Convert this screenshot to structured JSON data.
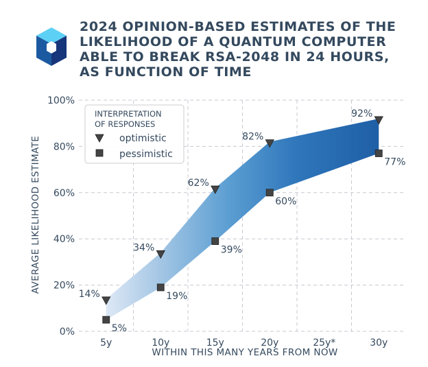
{
  "chart_data": {
    "type": "area",
    "title_lines": [
      "2024 OPINION-BASED ESTIMATES OF THE",
      "LIKELIHOOD OF A QUANTUM COMPUTER",
      "ABLE TO BREAK RSA-2048 IN 24 HOURS,",
      "AS FUNCTION OF TIME"
    ],
    "xlabel": "WITHIN THIS MANY YEARS FROM NOW",
    "ylabel": "AVERAGE LIKELIHOOD ESTIMATE",
    "categories": [
      "5y",
      "10y",
      "15y",
      "20y",
      "25y*",
      "30y"
    ],
    "x": [
      5,
      10,
      15,
      20,
      25,
      30
    ],
    "yticks": [
      "0%",
      "20%",
      "40%",
      "60%",
      "80%",
      "100%"
    ],
    "ylim": [
      0,
      100
    ],
    "grid": true,
    "legend": {
      "title_lines": [
        "INTERPRETATION",
        "OF RESPONSES"
      ],
      "position": "top-left"
    },
    "series": [
      {
        "name": "optimistic",
        "marker": "triangle-down",
        "x": [
          5,
          10,
          15,
          20,
          30
        ],
        "values": [
          14,
          34,
          62,
          82,
          92
        ],
        "labels": [
          "14%",
          "34%",
          "62%",
          "82%",
          "92%"
        ]
      },
      {
        "name": "pessimistic",
        "marker": "square",
        "x": [
          5,
          10,
          15,
          20,
          30
        ],
        "values": [
          5,
          19,
          39,
          60,
          77
        ],
        "labels": [
          "5%",
          "19%",
          "39%",
          "60%",
          "77%"
        ]
      }
    ],
    "colors": {
      "text": "#34495e",
      "band_light": "#dde8f5",
      "band_dark": "#2166ac",
      "marker": "#444444",
      "grid": "#c8c8d0"
    }
  },
  "logo": {
    "name": "cube-logo",
    "colors": [
      "#5dd0f5",
      "#2aa8e0",
      "#1b5aa0",
      "#17357a"
    ]
  }
}
